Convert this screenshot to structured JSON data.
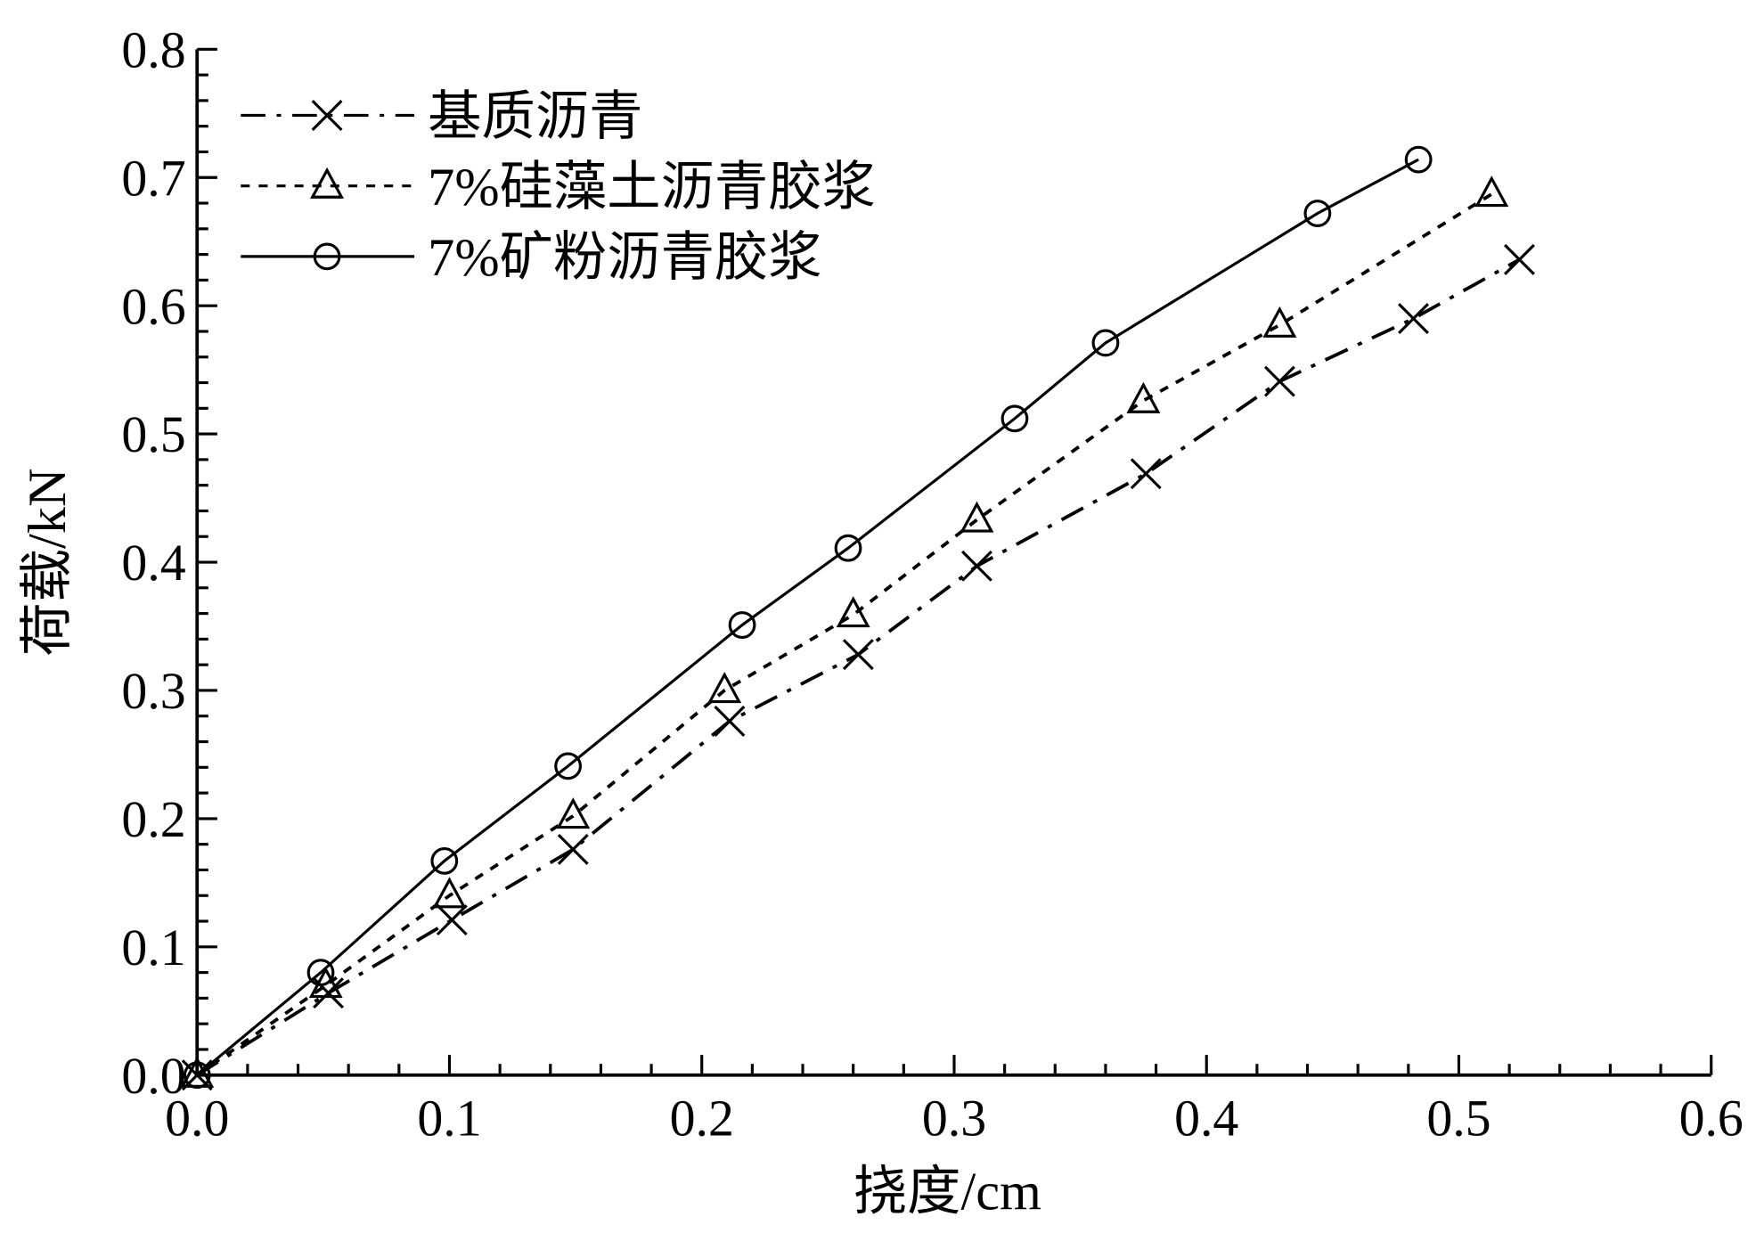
{
  "chart_data": {
    "type": "line",
    "title": "",
    "xlabel": "挠度/cm",
    "ylabel": "荷载/kN",
    "xlim": [
      0,
      0.6
    ],
    "ylim": [
      0,
      0.8
    ],
    "xticks": [
      "0.0",
      "0.1",
      "0.2",
      "0.3",
      "0.4",
      "0.5",
      "0.6"
    ],
    "yticks": [
      "0.0",
      "0.1",
      "0.2",
      "0.3",
      "0.4",
      "0.5",
      "0.6",
      "0.7",
      "0.8"
    ],
    "grid": false,
    "legend_position": "top-left",
    "series": [
      {
        "name": "基质沥青",
        "marker": "x",
        "line": "dashdot",
        "x": [
          0,
          0.052,
          0.101,
          0.149,
          0.211,
          0.262,
          0.309,
          0.376,
          0.429,
          0.482,
          0.524
        ],
        "y": [
          0,
          0.064,
          0.121,
          0.176,
          0.276,
          0.328,
          0.397,
          0.469,
          0.541,
          0.59,
          0.636
        ]
      },
      {
        "name": "7%硅藻土沥青胶浆",
        "marker": "triangle",
        "line": "dotted",
        "x": [
          0,
          0.051,
          0.1,
          0.149,
          0.209,
          0.26,
          0.309,
          0.375,
          0.429,
          0.513
        ],
        "y": [
          0,
          0.07,
          0.14,
          0.202,
          0.3,
          0.359,
          0.433,
          0.526,
          0.585,
          0.687
        ]
      },
      {
        "name": "7%矿粉沥青胶浆",
        "marker": "circle",
        "line": "solid",
        "x": [
          0,
          0.049,
          0.098,
          0.147,
          0.216,
          0.258,
          0.324,
          0.36,
          0.444,
          0.484
        ],
        "y": [
          0,
          0.08,
          0.167,
          0.241,
          0.351,
          0.411,
          0.512,
          0.571,
          0.672,
          0.714
        ]
      }
    ]
  }
}
